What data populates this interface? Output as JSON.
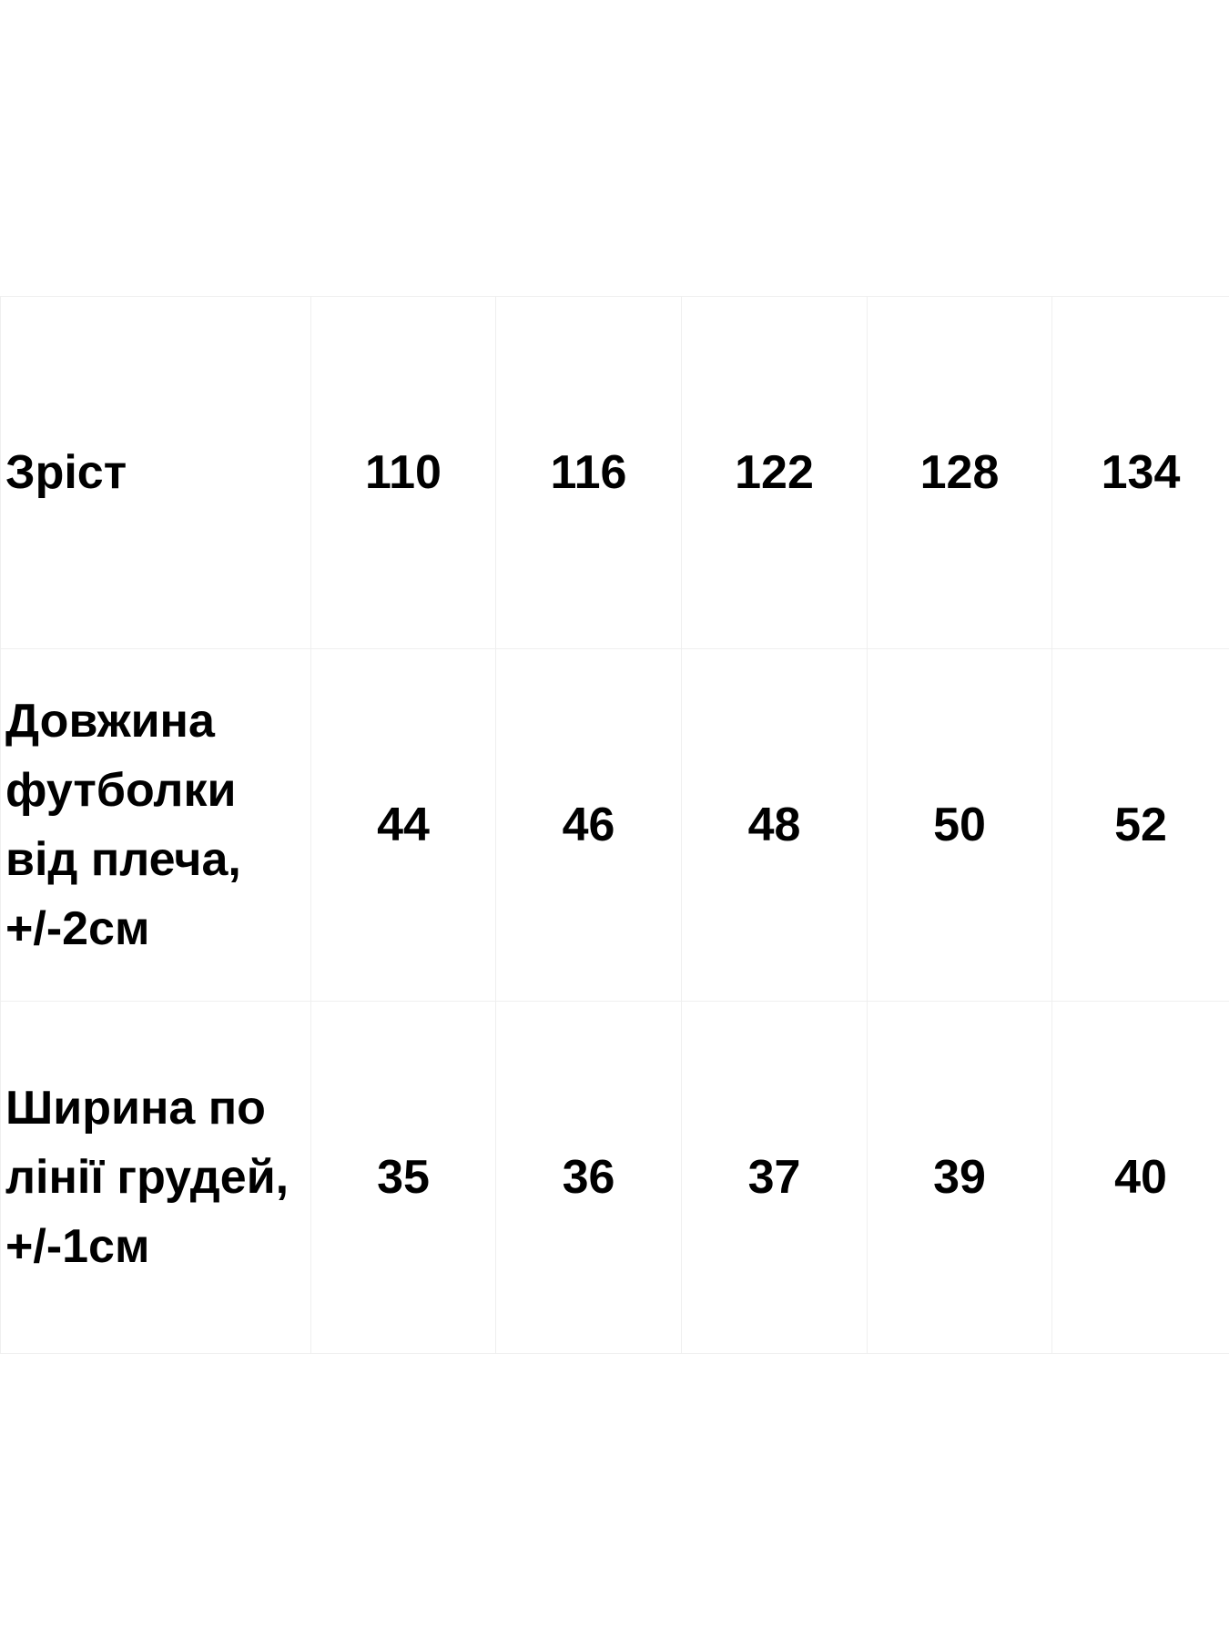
{
  "size_table": {
    "columns": [
      "110",
      "116",
      "122",
      "128",
      "134"
    ],
    "header_label": "Зріст",
    "rows": [
      {
        "label": "Довжина футболки від плеча, +/-2см",
        "values": [
          "44",
          "46",
          "48",
          "50",
          "52"
        ]
      },
      {
        "label": "Ширина по лінії грудей, +/-1см",
        "values": [
          "35",
          "36",
          "37",
          "39",
          "40"
        ]
      }
    ]
  }
}
